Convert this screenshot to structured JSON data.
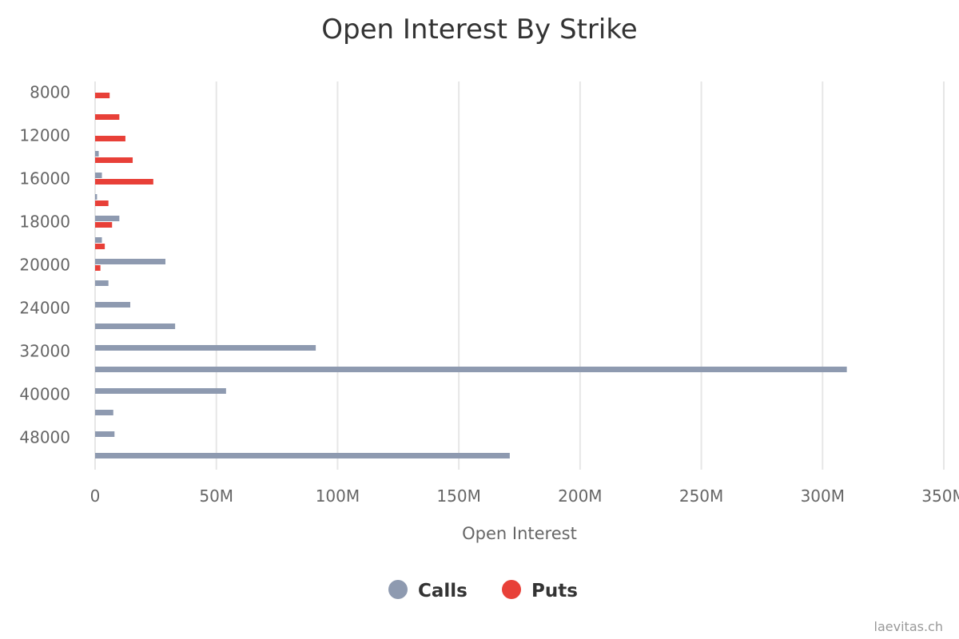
{
  "chart_data": {
    "type": "bar",
    "orientation": "horizontal",
    "title": "Open Interest By Strike",
    "xlabel": "Open Interest",
    "ylabel": "",
    "xlim": [
      0,
      350000000
    ],
    "x_ticks": [
      "0",
      "50M",
      "100M",
      "150M",
      "200M",
      "250M",
      "300M",
      "350M"
    ],
    "y_tick_labels": [
      "8000",
      "12000",
      "16000",
      "18000",
      "20000",
      "24000",
      "32000",
      "40000",
      "48000"
    ],
    "grid": true,
    "legend_position": "bottom-center",
    "categories": [
      "8000",
      "",
      "12000",
      "",
      "16000",
      "",
      "18000",
      "",
      "20000",
      "",
      "24000",
      "",
      "32000",
      "",
      "40000",
      "",
      "48000",
      ""
    ],
    "series": [
      {
        "name": "Calls",
        "color": "#8e9ab0",
        "values": [
          0,
          0,
          0,
          1500000,
          2800000,
          800000,
          10000000,
          2800000,
          29000000,
          5500000,
          14500000,
          33000000,
          91000000,
          310000000,
          54000000,
          7500000,
          8000000,
          171000000
        ]
      },
      {
        "name": "Puts",
        "color": "#e84038",
        "values": [
          6000000,
          10000000,
          12500000,
          15500000,
          24000000,
          5500000,
          7000000,
          4000000,
          2200000,
          0,
          0,
          0,
          0,
          0,
          0,
          0,
          0,
          0
        ]
      }
    ]
  },
  "credit": "laevitas.ch"
}
